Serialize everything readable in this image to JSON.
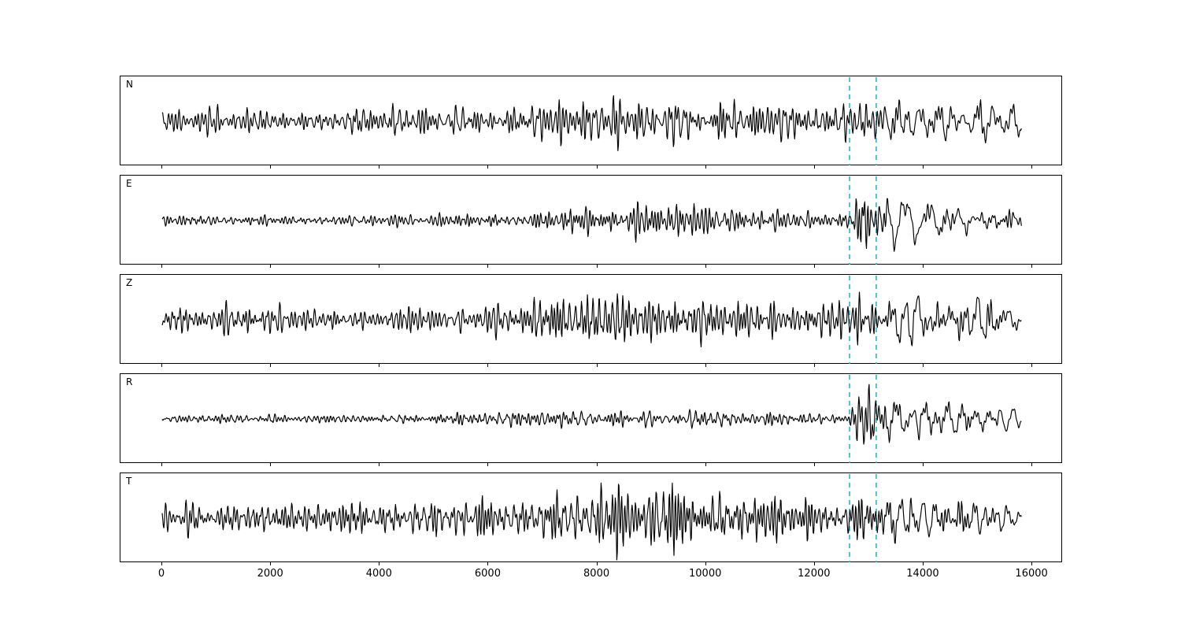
{
  "figure": {
    "background": "#ffffff",
    "title": ""
  },
  "chart_data": {
    "type": "line",
    "title": "",
    "xlabel": "",
    "ylabel": "",
    "grid": false,
    "legend": null,
    "xlim": [
      -768,
      16563
    ],
    "x_ticks": [
      0,
      2000,
      4000,
      6000,
      8000,
      10000,
      12000,
      14000,
      16000
    ],
    "x_tick_labels": [
      "0",
      "2000",
      "4000",
      "6000",
      "8000",
      "10000",
      "12000",
      "14000",
      "16000"
    ],
    "trace_x_range": [
      0,
      15800
    ],
    "trace_color": "#000000",
    "pick_lines": {
      "color": "#17becf",
      "style": "dashed",
      "x": [
        12640,
        13130
      ]
    },
    "panels": [
      {
        "label": "N",
        "seed": 101,
        "amp": 34,
        "envelope": [
          [
            0,
            0.4
          ],
          [
            1500,
            0.44
          ],
          [
            2500,
            0.4
          ],
          [
            4200,
            0.46
          ],
          [
            6000,
            0.44
          ],
          [
            6900,
            0.55
          ],
          [
            7400,
            0.72
          ],
          [
            8300,
            0.95
          ],
          [
            8700,
            0.75
          ],
          [
            9400,
            0.7
          ],
          [
            10300,
            0.62
          ],
          [
            11500,
            0.58
          ],
          [
            12500,
            0.55
          ],
          [
            12900,
            0.72
          ],
          [
            13400,
            0.85
          ],
          [
            13900,
            1.0
          ],
          [
            14500,
            0.8
          ],
          [
            15200,
            0.85
          ],
          [
            15800,
            0.7
          ]
        ]
      },
      {
        "label": "E",
        "seed": 202,
        "amp": 40,
        "envelope": [
          [
            0,
            0.13
          ],
          [
            2000,
            0.14
          ],
          [
            4000,
            0.15
          ],
          [
            5500,
            0.18
          ],
          [
            6800,
            0.25
          ],
          [
            7800,
            0.33
          ],
          [
            8600,
            0.38
          ],
          [
            9300,
            0.42
          ],
          [
            10200,
            0.36
          ],
          [
            11200,
            0.3
          ],
          [
            12200,
            0.27
          ],
          [
            12650,
            0.3
          ],
          [
            12850,
            1.0
          ],
          [
            13200,
            0.75
          ],
          [
            13800,
            0.95
          ],
          [
            14300,
            0.7
          ],
          [
            14900,
            0.5
          ],
          [
            15500,
            0.52
          ],
          [
            15800,
            0.45
          ]
        ]
      },
      {
        "label": "Z",
        "seed": 303,
        "amp": 36,
        "envelope": [
          [
            0,
            0.36
          ],
          [
            2000,
            0.4
          ],
          [
            3500,
            0.36
          ],
          [
            5500,
            0.42
          ],
          [
            6800,
            0.52
          ],
          [
            7600,
            0.75
          ],
          [
            8300,
            1.0
          ],
          [
            8800,
            0.72
          ],
          [
            9600,
            0.68
          ],
          [
            10600,
            0.6
          ],
          [
            11800,
            0.55
          ],
          [
            12600,
            0.58
          ],
          [
            13100,
            0.72
          ],
          [
            13800,
            1.0
          ],
          [
            14400,
            0.78
          ],
          [
            15100,
            0.8
          ],
          [
            15800,
            0.62
          ]
        ]
      },
      {
        "label": "R",
        "seed": 404,
        "amp": 44,
        "envelope": [
          [
            0,
            0.1
          ],
          [
            2500,
            0.11
          ],
          [
            5000,
            0.12
          ],
          [
            7000,
            0.16
          ],
          [
            8200,
            0.26
          ],
          [
            9200,
            0.24
          ],
          [
            10500,
            0.18
          ],
          [
            11800,
            0.15
          ],
          [
            12600,
            0.14
          ],
          [
            12950,
            1.0
          ],
          [
            13400,
            0.7
          ],
          [
            13900,
            0.9
          ],
          [
            14400,
            0.55
          ],
          [
            15000,
            0.38
          ],
          [
            15400,
            0.42
          ],
          [
            15800,
            0.33
          ]
        ]
      },
      {
        "label": "T",
        "seed": 505,
        "amp": 38,
        "envelope": [
          [
            0,
            0.42
          ],
          [
            1800,
            0.48
          ],
          [
            3500,
            0.44
          ],
          [
            5200,
            0.46
          ],
          [
            6600,
            0.55
          ],
          [
            7200,
            0.85
          ],
          [
            7800,
            0.75
          ],
          [
            8400,
            1.0
          ],
          [
            9000,
            0.85
          ],
          [
            9800,
            0.75
          ],
          [
            10800,
            0.65
          ],
          [
            11800,
            0.58
          ],
          [
            12600,
            0.62
          ],
          [
            13100,
            0.8
          ],
          [
            13700,
            0.9
          ],
          [
            14400,
            0.75
          ],
          [
            15100,
            0.95
          ],
          [
            15800,
            0.55
          ]
        ]
      }
    ]
  }
}
